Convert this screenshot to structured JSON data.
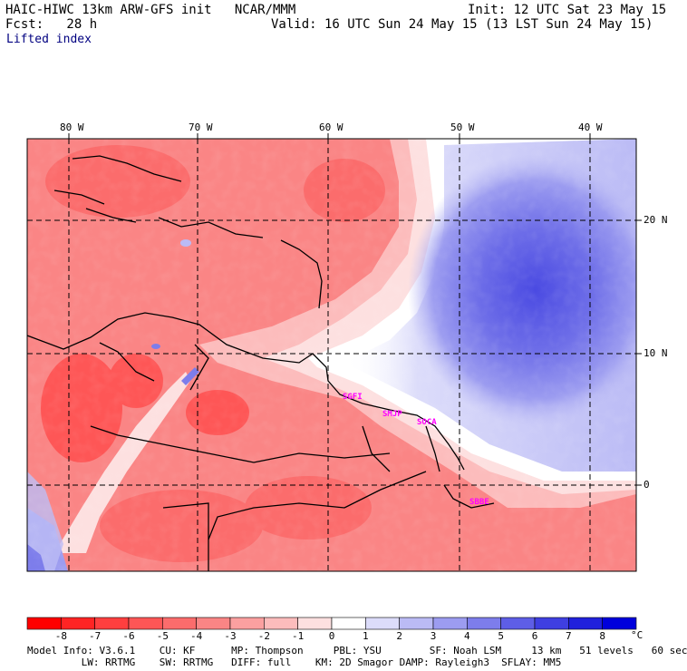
{
  "header": {
    "model_line": "HAIC-HIWC 13km ARW-GFS init   NCAR/MMM",
    "fcst_line": "Fcst:   28 h",
    "init_line": "Init: 12 UTC Sat 23 May 15",
    "valid_line": "Valid: 16 UTC Sun 24 May 15 (13 LST Sun 24 May 15)",
    "field": "Lifted index"
  },
  "map": {
    "lon_labels": [
      "80 W",
      "70 W",
      "60 W",
      "50 W",
      "40 W"
    ],
    "lat_labels": [
      "20 N",
      "10 N",
      "0"
    ],
    "stations": [
      "SGFI",
      "SMJP",
      "SOCA",
      "SBBE"
    ]
  },
  "colorbar": {
    "unit": "°C",
    "tick_labels": [
      "-8",
      "-7",
      "-6",
      "-5",
      "-4",
      "-3",
      "-2",
      "-1",
      "0",
      "1",
      "2",
      "3",
      "4",
      "5",
      "6",
      "7",
      "8"
    ],
    "colors": [
      "#ff0000",
      "#ff2424",
      "#ff3f3f",
      "#fe5656",
      "#fb6c6c",
      "#fa8585",
      "#fba0a0",
      "#fcbcbc",
      "#fde0e0",
      "#ffffff",
      "#dcdcfa",
      "#bbbbf5",
      "#9c9cf0",
      "#7d7deb",
      "#5e5ee6",
      "#3f3fe1",
      "#2020dc",
      "#0000dc"
    ]
  },
  "model_info": {
    "line1": "Model Info: V3.6.1    CU: KF      MP: Thompson     PBL: YSU        SF: Noah LSM     13 km   51 levels   60 sec",
    "line2": "         LW: RRTMG    SW: RRTMG   DIFF: full    KM: 2D Smagor DAMP: Rayleigh3  SFLAY: MM5"
  }
}
